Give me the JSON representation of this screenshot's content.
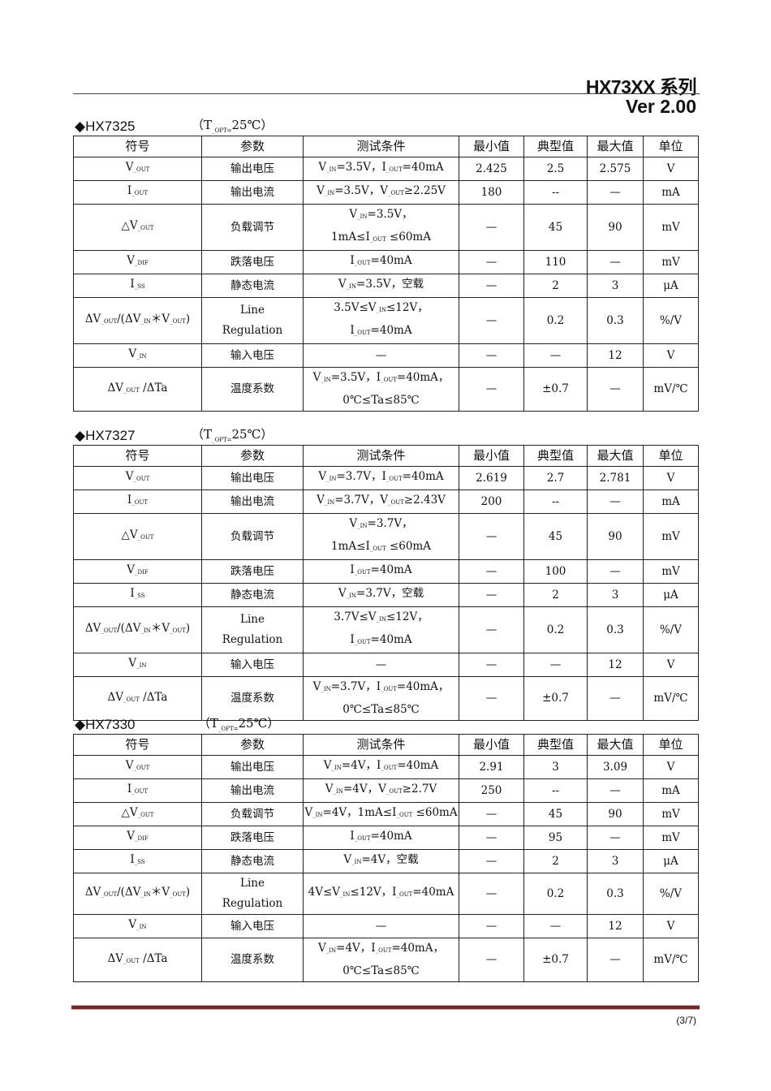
{
  "header": {
    "title": "HX73XX 系列",
    "version": "Ver 2.00"
  },
  "columns": [
    "符号",
    "参数",
    "测试条件",
    "最小值",
    "典型值",
    "最大值",
    "单位"
  ],
  "sections": [
    {
      "name": "◆HX7325",
      "condition": [
        "（T",
        "_OPT=",
        "25℃）"
      ],
      "rows": [
        [
          [
            "V",
            "_OUT"
          ],
          [
            "输出电压"
          ],
          [
            "V",
            "_IN",
            "=3.5V，I",
            "_OUT",
            "=40mA"
          ],
          [
            "2.425"
          ],
          [
            "2.5"
          ],
          [
            "2.575"
          ],
          [
            "V"
          ]
        ],
        [
          [
            "I",
            "_OUT"
          ],
          [
            "输出电流"
          ],
          [
            "V",
            "_IN",
            "=3.5V，V",
            "_OUT",
            "≥2.25V"
          ],
          [
            "180"
          ],
          [
            "--"
          ],
          [
            "—"
          ],
          [
            "mA"
          ]
        ],
        [
          [
            "△V",
            "_OUT"
          ],
          [
            "负载调节"
          ],
          [
            "V",
            "_IN",
            "=3.5V，",
            "\n",
            "1mA≤I",
            "_OUT",
            " ≤60mA"
          ],
          [
            "—"
          ],
          [
            "45"
          ],
          [
            "90"
          ],
          [
            "mV"
          ]
        ],
        [
          [
            "V",
            "_DIF"
          ],
          [
            "跌落电压"
          ],
          [
            "I",
            "_OUT",
            "=40mA"
          ],
          [
            "—"
          ],
          [
            "110"
          ],
          [
            "—"
          ],
          [
            "mV"
          ]
        ],
        [
          [
            "I",
            "_SS"
          ],
          [
            "静态电流"
          ],
          [
            "V",
            "_IN",
            "=3.5V，空载"
          ],
          [
            "—"
          ],
          [
            "2"
          ],
          [
            "3"
          ],
          [
            "μA"
          ]
        ],
        [
          [
            "ΔV",
            "_OUT",
            "/(ΔV",
            "_IN",
            "＊V",
            "_OUT",
            ")"
          ],
          [
            "Line",
            "\n",
            "Regulation"
          ],
          [
            "3.5V≤V",
            "_IN",
            "≤12V，",
            "\n",
            "I",
            "_OUT",
            "=40mA"
          ],
          [
            "—"
          ],
          [
            "0.2"
          ],
          [
            "0.3"
          ],
          [
            "%/V"
          ]
        ],
        [
          [
            "V",
            "_IN"
          ],
          [
            "输入电压"
          ],
          [
            "—"
          ],
          [
            "—"
          ],
          [
            "—"
          ],
          [
            "12"
          ],
          [
            "V"
          ]
        ],
        [
          [
            "ΔV",
            "_OUT",
            " /ΔTa"
          ],
          [
            "温度系数"
          ],
          [
            "V",
            "_IN",
            "=3.5V，I",
            "_OUT",
            "=40mA，",
            "\n",
            "0℃≤Ta≤85℃"
          ],
          [
            "—"
          ],
          [
            "±0.7"
          ],
          [
            "—"
          ],
          [
            "mV/℃"
          ]
        ]
      ]
    },
    {
      "name": "◆HX7327",
      "condition": [
        "（T",
        "_OPT=",
        "25℃）"
      ],
      "rows": [
        [
          [
            "V",
            "_OUT"
          ],
          [
            "输出电压"
          ],
          [
            "V",
            "_IN",
            "=3.7V，I",
            "_OUT",
            "=40mA"
          ],
          [
            "2.619"
          ],
          [
            "2.7"
          ],
          [
            "2.781"
          ],
          [
            "V"
          ]
        ],
        [
          [
            "I",
            "_OUT"
          ],
          [
            "输出电流"
          ],
          [
            "V",
            "_IN",
            "=3.7V，V",
            "_OUT",
            "≥2.43V"
          ],
          [
            "200"
          ],
          [
            "--"
          ],
          [
            "—"
          ],
          [
            "mA"
          ]
        ],
        [
          [
            "△V",
            "_OUT"
          ],
          [
            "负载调节"
          ],
          [
            "V",
            "_IN",
            "=3.7V，",
            "\n",
            "1mA≤I",
            "_OUT",
            " ≤60mA"
          ],
          [
            "—"
          ],
          [
            "45"
          ],
          [
            "90"
          ],
          [
            "mV"
          ]
        ],
        [
          [
            "V",
            "_DIF"
          ],
          [
            "跌落电压"
          ],
          [
            "I",
            "_OUT",
            "=40mA"
          ],
          [
            "—"
          ],
          [
            "100"
          ],
          [
            "—"
          ],
          [
            "mV"
          ]
        ],
        [
          [
            "I",
            "_SS"
          ],
          [
            "静态电流"
          ],
          [
            "V",
            "_IN",
            "=3.7V，空载"
          ],
          [
            "—"
          ],
          [
            "2"
          ],
          [
            "3"
          ],
          [
            "μA"
          ]
        ],
        [
          [
            "ΔV",
            "_OUT",
            "/(ΔV",
            "_IN",
            "＊V",
            "_OUT",
            ")"
          ],
          [
            "Line",
            "\n",
            "Regulation"
          ],
          [
            "3.7V≤V",
            "_IN",
            "≤12V，",
            "\n",
            "I",
            "_OUT",
            "=40mA"
          ],
          [
            "—"
          ],
          [
            "0.2"
          ],
          [
            "0.3"
          ],
          [
            "%/V"
          ]
        ],
        [
          [
            "V",
            "_IN"
          ],
          [
            "输入电压"
          ],
          [
            "—"
          ],
          [
            "—"
          ],
          [
            "—"
          ],
          [
            "12"
          ],
          [
            "V"
          ]
        ],
        [
          [
            "ΔV",
            "_OUT",
            " /ΔTa"
          ],
          [
            "温度系数"
          ],
          [
            "V",
            "_IN",
            "=3.7V，I",
            "_OUT",
            "=40mA，",
            "\n",
            "0℃≤Ta≤85℃"
          ],
          [
            "—"
          ],
          [
            "±0.7"
          ],
          [
            "—"
          ],
          [
            "mV/℃"
          ]
        ]
      ]
    },
    {
      "name": "◆HX7330",
      "condition": [
        "（T",
        "_OPT=",
        "25℃）"
      ],
      "rows": [
        [
          [
            "V",
            "_OUT"
          ],
          [
            "输出电压"
          ],
          [
            "V",
            "_IN",
            "=4V，I",
            "_OUT",
            "=40mA"
          ],
          [
            "2.91"
          ],
          [
            "3"
          ],
          [
            "3.09"
          ],
          [
            "V"
          ]
        ],
        [
          [
            "I",
            "_OUT"
          ],
          [
            "输出电流"
          ],
          [
            "V",
            "_IN",
            "=4V，V",
            "_OUT",
            "≥2.7V"
          ],
          [
            "250"
          ],
          [
            "--"
          ],
          [
            "—"
          ],
          [
            "mA"
          ]
        ],
        [
          [
            "△V",
            "_OUT"
          ],
          [
            "负载调节"
          ],
          [
            "V",
            "_IN",
            "=4V，1mA≤I",
            "_OUT",
            " ≤60mA"
          ],
          [
            "—"
          ],
          [
            "45"
          ],
          [
            "90"
          ],
          [
            "mV"
          ]
        ],
        [
          [
            "V",
            "_DIF"
          ],
          [
            "跌落电压"
          ],
          [
            "I",
            "_OUT",
            "=40mA"
          ],
          [
            "—"
          ],
          [
            "95"
          ],
          [
            "—"
          ],
          [
            "mV"
          ]
        ],
        [
          [
            "I",
            "_SS"
          ],
          [
            "静态电流"
          ],
          [
            "V",
            "_IN",
            "=4V，空载"
          ],
          [
            "—"
          ],
          [
            "2"
          ],
          [
            "3"
          ],
          [
            "μA"
          ]
        ],
        [
          [
            "ΔV",
            "_OUT",
            "/(ΔV",
            "_IN",
            "＊V",
            "_OUT",
            ")"
          ],
          [
            "Line",
            "\n",
            "Regulation"
          ],
          [
            "4V≤V",
            "_IN",
            "≤12V，I",
            "_OUT",
            "=40mA"
          ],
          [
            "—"
          ],
          [
            "0.2"
          ],
          [
            "0.3"
          ],
          [
            "%/V"
          ]
        ],
        [
          [
            "V",
            "_IN"
          ],
          [
            "输入电压"
          ],
          [
            "—"
          ],
          [
            "—"
          ],
          [
            "—"
          ],
          [
            "12"
          ],
          [
            "V"
          ]
        ],
        [
          [
            "ΔV",
            "_OUT",
            " /ΔTa"
          ],
          [
            "温度系数"
          ],
          [
            "V",
            "_IN",
            "=4V，I",
            "_OUT",
            "=40mA，",
            "\n",
            "0℃≤Ta≤85℃"
          ],
          [
            "—"
          ],
          [
            "±0.7"
          ],
          [
            "—"
          ],
          [
            "mV/℃"
          ]
        ]
      ]
    }
  ],
  "footer": {
    "page": "(3/7)",
    "rule_color": "#6e2a2a"
  }
}
